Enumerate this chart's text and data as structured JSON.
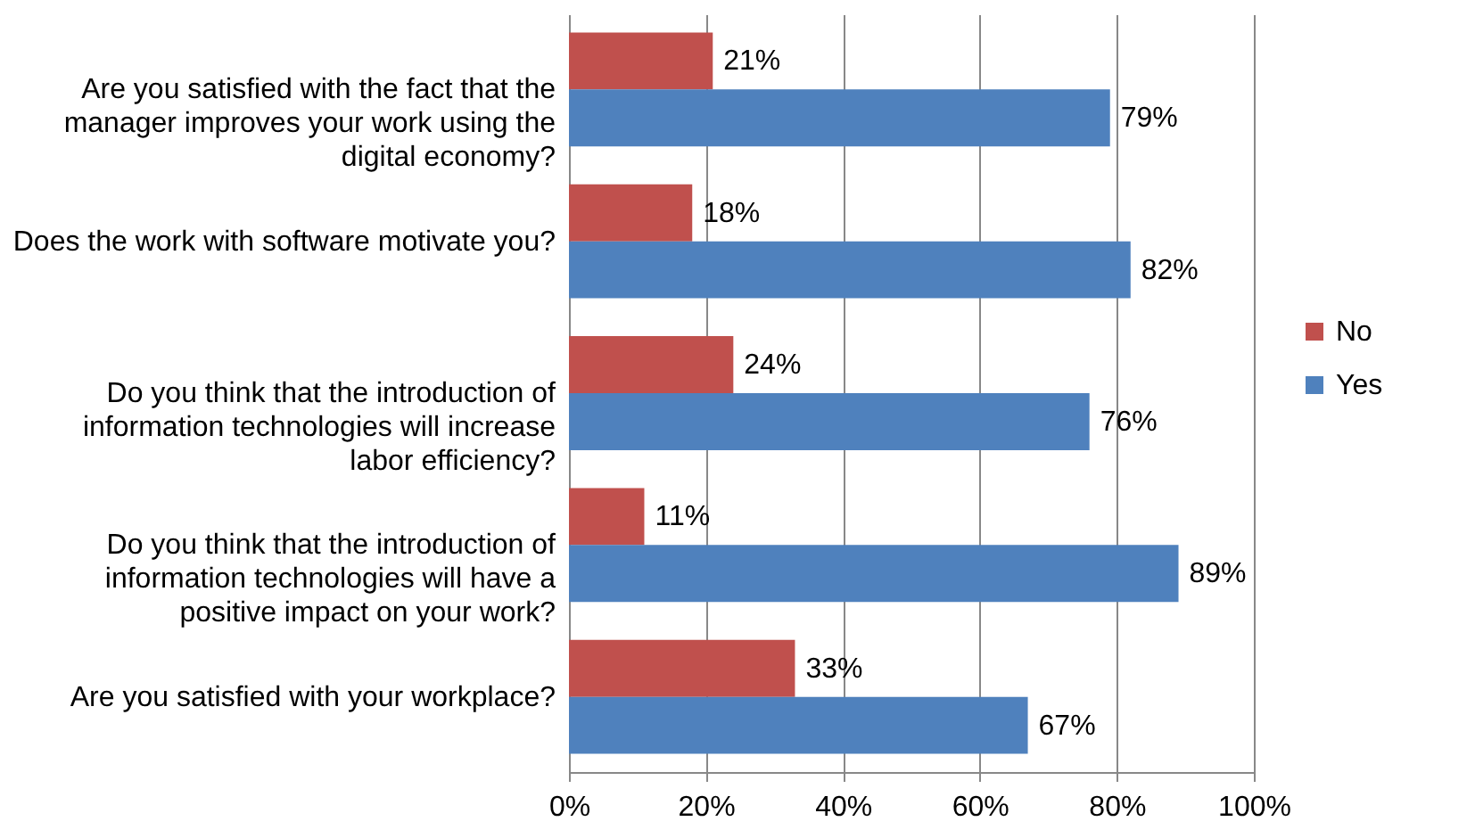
{
  "chart_data": {
    "type": "bar",
    "orientation": "horizontal",
    "categories": [
      "Are you satisfied with the fact that the manager improves your work using the digital economy?",
      "Does the work with software motivate you?",
      "Do you think that the introduction of information technologies will increase labor efficiency?",
      "Do you think that the introduction of information technologies will have a positive impact on your work?",
      "Are you satisfied with your workplace?"
    ],
    "series": [
      {
        "name": "No",
        "color": "#c0504d",
        "values": [
          21,
          18,
          24,
          11,
          33
        ],
        "value_labels": [
          "21%",
          "18%",
          "24%",
          "11%",
          "33%"
        ]
      },
      {
        "name": "Yes",
        "color": "#4f81bd",
        "values": [
          79,
          82,
          76,
          89,
          67
        ],
        "value_labels": [
          "79%",
          "82%",
          "76%",
          "89%",
          "67%"
        ]
      }
    ],
    "xlim": [
      0,
      100
    ],
    "xticks": [
      {
        "value": 0,
        "label": "0%"
      },
      {
        "value": 20,
        "label": "20%"
      },
      {
        "value": 40,
        "label": "40%"
      },
      {
        "value": 60,
        "label": "60%"
      },
      {
        "value": 80,
        "label": "80%"
      },
      {
        "value": 100,
        "label": "100%"
      }
    ],
    "grid": "x",
    "legend": "right"
  }
}
